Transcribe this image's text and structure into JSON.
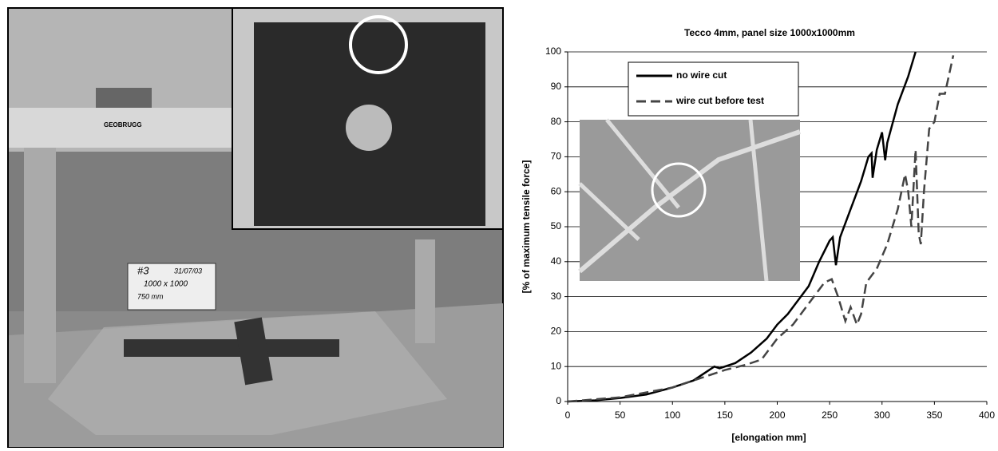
{
  "photo": {
    "sign": "GEOBRUGG",
    "board": [
      "#3",
      "31/07/03",
      "1000 x 1000",
      "750 mm"
    ]
  },
  "chart_data": {
    "type": "line",
    "title": "Tecco 4mm, panel size 1000x1000mm",
    "x_label": "[elongation mm]",
    "y_label": "[% of maximum tensile force]",
    "xlim": [
      0,
      400
    ],
    "xticks": [
      0,
      50,
      100,
      150,
      200,
      250,
      300,
      350,
      400
    ],
    "ylim": [
      0,
      100
    ],
    "yticks": [
      0,
      10,
      20,
      30,
      40,
      50,
      60,
      70,
      80,
      90,
      100
    ],
    "grid": true,
    "legend": "upper left",
    "series": [
      {
        "name": "no wire cut",
        "color": "#000000",
        "style": "solid",
        "x": [
          0,
          25,
          50,
          75,
          100,
          120,
          130,
          140,
          145,
          150,
          160,
          175,
          190,
          200,
          210,
          220,
          230,
          240,
          250,
          253,
          256,
          260,
          270,
          280,
          287,
          290,
          291,
          295,
          300,
          303,
          305,
          315,
          325,
          332
        ],
        "values": [
          0,
          0.3,
          1,
          2,
          4,
          6,
          8,
          10,
          9.5,
          10,
          11,
          14,
          18,
          22,
          25,
          29,
          33,
          40,
          46,
          47,
          39,
          47,
          55,
          63,
          70,
          71,
          64,
          72,
          77,
          69,
          74,
          85,
          93,
          100
        ]
      },
      {
        "name": "wire cut before test",
        "color": "#444444",
        "style": "dashed",
        "x": [
          0,
          50,
          100,
          130,
          150,
          170,
          185,
          200,
          215,
          230,
          245,
          252,
          258,
          265,
          270,
          276,
          280,
          285,
          295,
          305,
          315,
          322,
          325,
          328,
          332,
          335,
          337,
          340,
          345,
          350,
          355,
          360,
          368
        ],
        "values": [
          0,
          1.2,
          4,
          7,
          9,
          10.5,
          12,
          18,
          22,
          28,
          34,
          35,
          30,
          23,
          27,
          22,
          25,
          34,
          38,
          45,
          55,
          65,
          60,
          50,
          72,
          48,
          45,
          60,
          78,
          80,
          88,
          88,
          99
        ]
      }
    ]
  }
}
